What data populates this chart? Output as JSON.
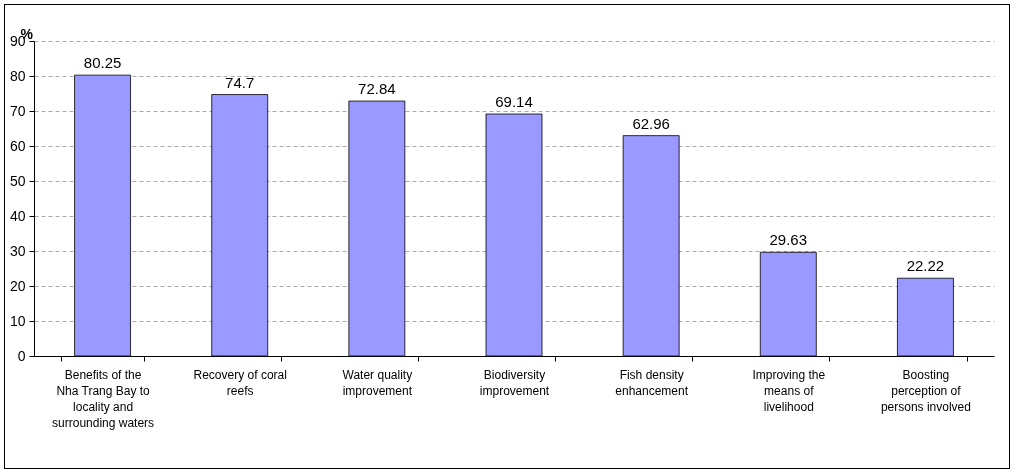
{
  "chart_data": {
    "type": "bar",
    "ylabel": "%",
    "categories": [
      "Benefits of the Nha Trang Bay to locality and surrounding waters",
      "Recovery of coral reefs",
      "Water quality improvement",
      "Biodiversity improvement",
      "Fish density enhancement",
      "Improving the means of livelihood",
      "Boosting perception of persons involved"
    ],
    "values": [
      80.25,
      74.7,
      72.84,
      69.14,
      62.96,
      29.63,
      22.22
    ],
    "color": "#9999ff",
    "ylim": [
      0,
      90
    ],
    "yticks": [
      0,
      10,
      20,
      30,
      40,
      50,
      60,
      70,
      80,
      90
    ],
    "grid": "y",
    "data_labels": true
  }
}
